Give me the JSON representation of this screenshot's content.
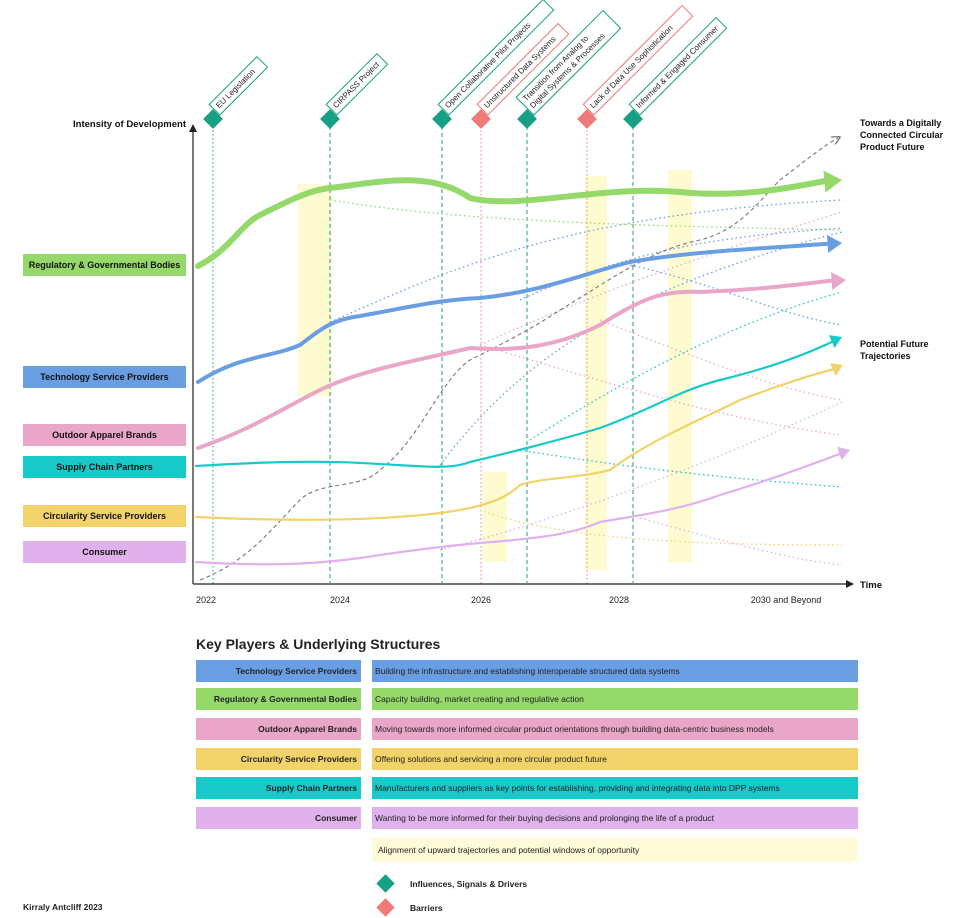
{
  "colors": {
    "regulatory": "#95d96a",
    "technology": "#6a9ee3",
    "outdoor": "#eaa6c8",
    "supply": "#17c9c9",
    "circularity": "#f1d36a",
    "consumer": "#e0b1ec",
    "influence": "#17a083",
    "barrier": "#ef7a7a",
    "window": "#fffbd0"
  },
  "axes": {
    "y_label": "Intensity of Development",
    "x_label": "Time",
    "ticks": [
      "2022",
      "2024",
      "2026",
      "2028",
      "2030 and Beyond"
    ]
  },
  "actors": [
    {
      "key": "regulatory",
      "label": "Regulatory & Governmental Bodies"
    },
    {
      "key": "technology",
      "label": "Technology Service Providers"
    },
    {
      "key": "outdoor",
      "label": "Outdoor Apparel Brands"
    },
    {
      "key": "supply",
      "label": "Supply Chain Partners"
    },
    {
      "key": "circularity",
      "label": "Circularity Service Providers"
    },
    {
      "key": "consumer",
      "label": "Consumer"
    }
  ],
  "events": [
    {
      "label": "EU Legislation",
      "type": "influence"
    },
    {
      "label": "CIRPASS Project",
      "type": "influence"
    },
    {
      "label": "Open Collaborative Pilot Projects",
      "type": "influence"
    },
    {
      "label": "Unstructured Data Systems",
      "type": "barrier"
    },
    {
      "label": "Transition from Analog to Digital Systems & Processes",
      "type": "influence"
    },
    {
      "label": "Lack of Data Use Sophistication",
      "type": "barrier"
    },
    {
      "label": "Informed & Engaged Consumer",
      "type": "influence"
    }
  ],
  "annotations": {
    "future_top": [
      "Towards a Digitally",
      "Connected Circular",
      "Product Future"
    ],
    "future_mid": [
      "Potential Future",
      "Trajectories"
    ]
  },
  "legend": {
    "title": "Key Players & Underlying Structures",
    "rows": [
      {
        "key": "technology",
        "name": "Technology Service Providers",
        "desc": "Building the infrastructure and establishing interoperable structured data systems"
      },
      {
        "key": "regulatory",
        "name": "Regulatory & Governmental Bodies",
        "desc": "Capacity building, market creating and regulative action"
      },
      {
        "key": "outdoor",
        "name": "Outdoor Apparel Brands",
        "desc": "Moving towards more informed circular product orientations through building data-centric business models"
      },
      {
        "key": "circularity",
        "name": "Circularity Service Providers",
        "desc": "Offering solutions and servicing a more circular product future"
      },
      {
        "key": "supply",
        "name": "Supply Chain Partners",
        "desc": "Manufacturers and suppliers as key points for establishing, providing and integrating data into DPP systems"
      },
      {
        "key": "consumer",
        "name": "Consumer",
        "desc": "Wanting to be more informed for their buying decisions and prolonging the life of a product"
      }
    ],
    "alignment": "Alignment of upward trajectories and potential windows of opportunity",
    "influence_label": "Influences, Signals & Drivers",
    "barrier_label": "Barriers"
  },
  "credit": "Kirraly Antcliff 2023"
}
